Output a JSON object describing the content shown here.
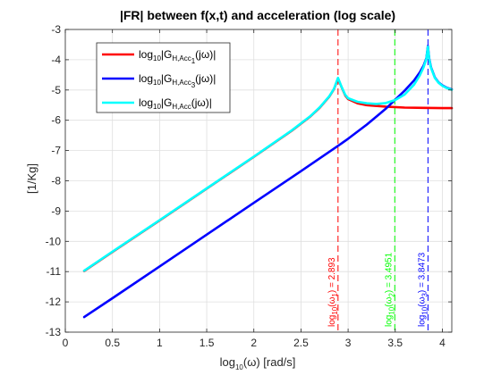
{
  "chart_data": {
    "type": "line",
    "title": "|FR| between f(x,t) and acceleration (log scale)",
    "xlabel": {
      "base": "log",
      "sub": "10",
      "rest": "(ω) [rad/s]"
    },
    "ylabel": "[1/Kg]",
    "xlim": [
      0,
      4.1
    ],
    "ylim": [
      -13,
      -3
    ],
    "xticks": [
      0,
      0.5,
      1,
      1.5,
      2,
      2.5,
      3,
      3.5,
      4
    ],
    "xtick_labels": [
      "0",
      "0.5",
      "1",
      "1.5",
      "2",
      "2.5",
      "3",
      "3.5",
      "4"
    ],
    "yticks": [
      -13,
      -12,
      -11,
      -10,
      -9,
      -8,
      -7,
      -6,
      -5,
      -4,
      -3
    ],
    "ytick_labels": [
      "-13",
      "-12",
      "-11",
      "-10",
      "-9",
      "-8",
      "-7",
      "-6",
      "-5",
      "-4",
      "-3"
    ],
    "grid": true,
    "legend_position": "top-left",
    "series": [
      {
        "name": {
          "a": "log",
          "b": "10",
          "c": "|G",
          "d": "H,Acc",
          "e": "1",
          "f": "(jω)|"
        },
        "color": "#ff0000",
        "x": [
          0.2,
          0.5,
          1.0,
          1.5,
          2.0,
          2.4,
          2.6,
          2.7,
          2.8,
          2.85,
          2.893,
          2.93,
          2.97,
          3.0,
          3.1,
          3.2,
          3.4,
          3.6,
          3.8,
          4.0,
          4.1
        ],
        "y": [
          -10.98,
          -10.35,
          -9.31,
          -8.26,
          -7.21,
          -6.35,
          -5.87,
          -5.58,
          -5.22,
          -4.97,
          -4.62,
          -4.9,
          -5.18,
          -5.3,
          -5.44,
          -5.5,
          -5.55,
          -5.58,
          -5.59,
          -5.6,
          -5.6
        ]
      },
      {
        "name": {
          "a": "log",
          "b": "10",
          "c": "|G",
          "d": "H,Acc",
          "e": "3",
          "f": "(jω)|"
        },
        "color": "#0000ff",
        "x": [
          0.2,
          0.5,
          1.0,
          1.5,
          2.0,
          2.5,
          2.9,
          3.0,
          3.2,
          3.4,
          3.6,
          3.7,
          3.76,
          3.8,
          3.83,
          3.847,
          3.86,
          3.88,
          3.92,
          3.96,
          4.0,
          4.05,
          4.1
        ],
        "y": [
          -12.5,
          -11.88,
          -10.83,
          -9.78,
          -8.73,
          -7.68,
          -6.83,
          -6.61,
          -6.14,
          -5.62,
          -5.02,
          -4.68,
          -4.42,
          -4.2,
          -3.95,
          -3.55,
          -3.95,
          -4.25,
          -4.58,
          -4.75,
          -4.85,
          -4.93,
          -4.98
        ]
      },
      {
        "name": {
          "a": "log",
          "b": "10",
          "c": "|G",
          "d": "H,Acc",
          "e": "",
          "f": "(jω)|"
        },
        "color": "#00ffff",
        "x": [
          0.2,
          0.5,
          1.0,
          1.5,
          2.0,
          2.4,
          2.6,
          2.7,
          2.8,
          2.85,
          2.893,
          2.93,
          2.97,
          3.0,
          3.1,
          3.2,
          3.3,
          3.4,
          3.5,
          3.6,
          3.7,
          3.76,
          3.8,
          3.83,
          3.847,
          3.86,
          3.88,
          3.92,
          3.96,
          4.0,
          4.05,
          4.1
        ],
        "y": [
          -10.97,
          -10.34,
          -9.3,
          -8.25,
          -7.2,
          -6.34,
          -5.86,
          -5.57,
          -5.21,
          -4.96,
          -4.6,
          -4.89,
          -5.16,
          -5.27,
          -5.39,
          -5.44,
          -5.46,
          -5.43,
          -5.33,
          -5.15,
          -4.82,
          -4.52,
          -4.25,
          -3.97,
          -3.57,
          -3.97,
          -4.27,
          -4.6,
          -4.76,
          -4.86,
          -4.94,
          -4.99
        ]
      }
    ],
    "vlines": [
      {
        "x": 2.893,
        "color": "#ff0000",
        "label": {
          "a": "log",
          "b": "10",
          "c": "(ω",
          "d": "1",
          "e": ") = 2.893"
        }
      },
      {
        "x": 3.4951,
        "color": "#00ff00",
        "label": {
          "a": "log",
          "b": "10",
          "c": "(ω",
          "d": "2",
          "e": ") = 3.4951"
        }
      },
      {
        "x": 3.8473,
        "color": "#0000ff",
        "label": {
          "a": "log",
          "b": "10",
          "c": "(ω",
          "d": "3",
          "e": ") = 3.8473"
        }
      }
    ]
  }
}
